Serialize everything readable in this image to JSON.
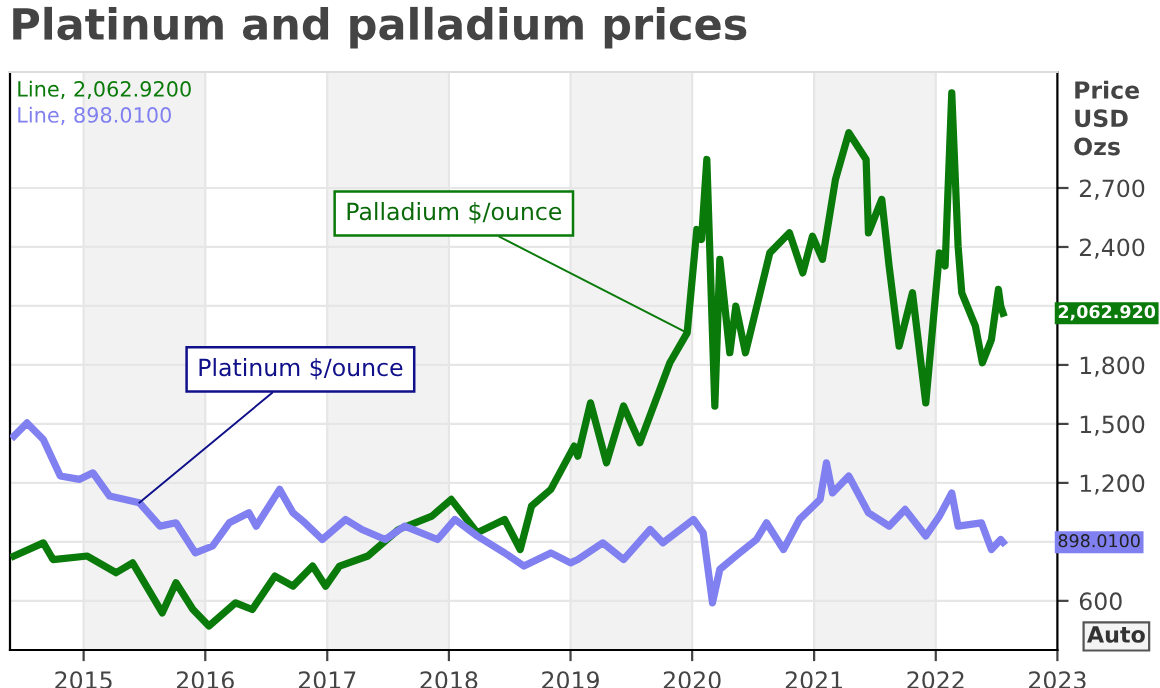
{
  "chart_data": {
    "type": "line",
    "title": "Platinum and palladium prices",
    "ylabel": "Price\nUSD\nOzs",
    "xlim": [
      "2014-05-25",
      "2023-01-01"
    ],
    "xticks": [
      "2015",
      "2016",
      "2017",
      "2018",
      "2019",
      "2020",
      "2021",
      "2022",
      "2023"
    ],
    "ylim": [
      350,
      3290
    ],
    "yticks": [
      600,
      {
        "value": 900,
        "label": null
      },
      {
        "value": 1200,
        "label": "1,200"
      },
      {
        "value": 1500,
        "label": "1,500"
      },
      {
        "value": 1800,
        "label": "1,800"
      },
      {
        "value": 2100,
        "label": null
      },
      {
        "value": 2400,
        "label": "2,400"
      },
      {
        "value": 2700,
        "label": "2,700"
      }
    ],
    "grid": true,
    "legend": false,
    "line_style": "solid",
    "marker": "none",
    "bands": [
      {
        "axis": "x",
        "from": "2015",
        "to": "2016",
        "label": null,
        "color": "#f2f2f2"
      },
      {
        "axis": "x",
        "from": "2017",
        "to": "2018",
        "label": null,
        "color": "#f2f2f2"
      },
      {
        "axis": "x",
        "from": "2019",
        "to": "2020",
        "label": null,
        "color": "#f2f2f2"
      },
      {
        "axis": "x",
        "from": "2021",
        "to": "2022",
        "label": null,
        "color": "#f2f2f2"
      }
    ],
    "series": [
      {
        "color": "#0a7a0a",
        "x": [
          "2014-06-06",
          "2014-09-02",
          "2014-10-01",
          "2015-01-12",
          "2015-04-08",
          "2015-05-28",
          "2015-08-25",
          "2015-10-05",
          "2015-11-25",
          "2016-01-12",
          "2016-04-01",
          "2016-05-21",
          "2016-07-28",
          "2016-09-20",
          "2016-11-18",
          "2016-12-27",
          "2017-02-07",
          "2017-05-03",
          "2017-08-03",
          "2017-11-11",
          "2018-01-08",
          "2018-03-27",
          "2018-06-17",
          "2018-08-03",
          "2018-09-06",
          "2018-11-03",
          "2019-01-12",
          "2019-01-23",
          "2019-03-02",
          "2019-04-19",
          "2019-06-09",
          "2019-07-28",
          "2019-10-26",
          "2019-12-17",
          "2020-01-15",
          "2020-01-29",
          "2020-02-14",
          "2020-03-09",
          "2020-03-24",
          "2020-04-23",
          "2020-05-11",
          "2020-06-09",
          "2020-08-21",
          "2020-10-19",
          "2020-11-28",
          "2020-12-27",
          "2021-01-26",
          "2021-03-06",
          "2021-04-15",
          "2021-06-06",
          "2021-06-13",
          "2021-07-23",
          "2021-08-14",
          "2021-09-13",
          "2021-10-23",
          "2021-12-02",
          "2022-01-12",
          "2022-01-29",
          "2022-02-18",
          "2022-03-09",
          "2022-03-20",
          "2022-04-30",
          "2022-05-21",
          "2022-06-17",
          "2022-07-08",
          "2022-07-15",
          "2022-07-22"
        ],
        "values": [
          828,
          895,
          810,
          828,
          743,
          793,
          539,
          692,
          556,
          472,
          590,
          556,
          726,
          675,
          777,
          675,
          777,
          828,
          963,
          1031,
          1116,
          946,
          1014,
          861,
          1082,
          1167,
          1387,
          1336,
          1607,
          1302,
          1591,
          1404,
          1811,
          1963,
          2489,
          2438,
          2845,
          1591,
          2337,
          1862,
          2099,
          1862,
          2370,
          2472,
          2268,
          2455,
          2337,
          2743,
          2981,
          2845,
          2472,
          2642,
          2303,
          1896,
          2167,
          1607,
          2370,
          2303,
          3184,
          2404,
          2167,
          1997,
          1811,
          1929,
          2184,
          2099,
          2062.92
        ]
      },
      {
        "color": "#8080f0",
        "x": [
          "2014-06-06",
          "2014-07-15",
          "2014-09-02",
          "2014-10-23",
          "2014-12-20",
          "2015-01-29",
          "2015-03-20",
          "2015-06-17",
          "2015-08-18",
          "2015-10-05",
          "2015-12-02",
          "2016-01-23",
          "2016-03-13",
          "2016-05-11",
          "2016-06-02",
          "2016-08-11",
          "2016-09-20",
          "2016-10-26",
          "2016-12-17",
          "2017-02-25",
          "2017-04-15",
          "2017-06-24",
          "2017-08-21",
          "2017-11-28",
          "2018-01-19",
          "2018-03-27",
          "2018-06-17",
          "2018-08-14",
          "2018-11-03",
          "2019-01-01",
          "2019-01-23",
          "2019-04-08",
          "2019-06-09",
          "2019-08-28",
          "2019-10-05",
          "2020-01-05",
          "2020-02-03",
          "2020-03-02",
          "2020-03-24",
          "2020-05-11",
          "2020-07-12",
          "2020-08-11",
          "2020-10-01",
          "2020-11-18",
          "2021-01-19",
          "2021-02-07",
          "2021-02-25",
          "2021-04-15",
          "2021-06-13",
          "2021-08-14",
          "2021-10-01",
          "2021-12-02",
          "2022-01-12",
          "2022-02-18",
          "2022-03-09",
          "2022-05-18",
          "2022-06-17",
          "2022-07-15",
          "2022-07-22"
        ],
        "values": [
          1438,
          1505,
          1421,
          1235,
          1218,
          1251,
          1133,
          1099,
          980,
          997,
          844,
          879,
          997,
          1048,
          980,
          1167,
          1048,
          997,
          912,
          1014,
          963,
          912,
          980,
          912,
          1014,
          930,
          844,
          777,
          844,
          793,
          810,
          895,
          810,
          963,
          895,
          1014,
          946,
          590,
          760,
          828,
          912,
          997,
          861,
          1014,
          1116,
          1302,
          1149,
          1235,
          1048,
          980,
          1065,
          930,
          1031,
          1149,
          980,
          997,
          861,
          912,
          898.01
        ]
      }
    ],
    "annotations": [
      "Line, 2,062.9200",
      "Line, 898.0100",
      {
        "text": "Palladium $/ounce",
        "x": "2019-12-17",
        "y": 1963
      },
      {
        "text": "Platinum $/ounce",
        "x": "2015-06-17",
        "y": 1099
      },
      "2,062.920",
      "898.0100",
      "Auto"
    ]
  }
}
